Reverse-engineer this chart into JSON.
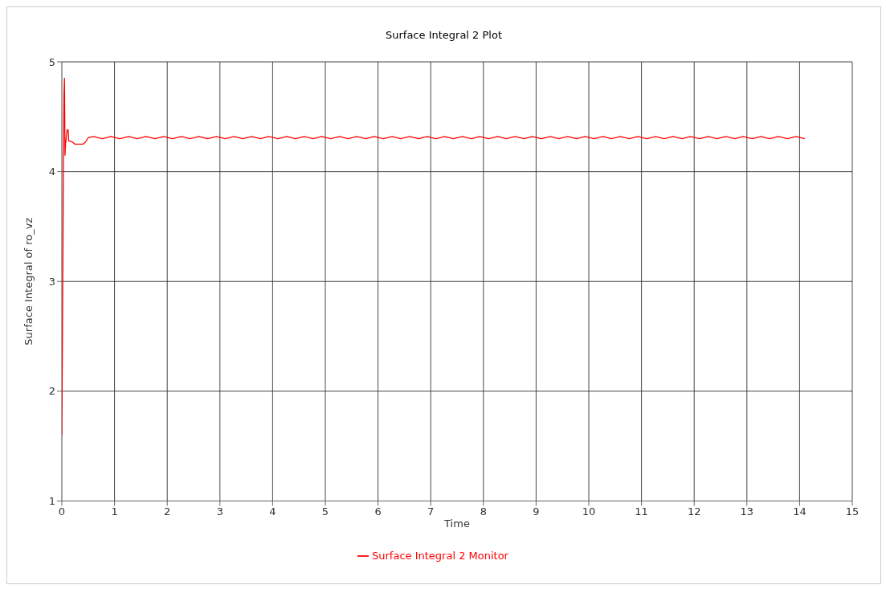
{
  "chart_data": {
    "type": "line",
    "title": "Surface Integral 2 Plot",
    "xlabel": "Time",
    "ylabel": "Surface Integral of ro_vz",
    "x": [
      0,
      0.02,
      0.03,
      0.04,
      0.05,
      0.055,
      0.06,
      0.07,
      0.1,
      0.12,
      0.13,
      0.2,
      0.25,
      0.4,
      0.45,
      0.5,
      0.6,
      0.77,
      0.93,
      1.1,
      1.27,
      1.43,
      1.6,
      1.77,
      1.93,
      2.1,
      2.27,
      2.43,
      2.6,
      2.77,
      2.93,
      3.1,
      3.27,
      3.43,
      3.6,
      3.77,
      3.93,
      4.1,
      4.27,
      4.43,
      4.6,
      4.77,
      4.93,
      5.1,
      5.27,
      5.43,
      5.6,
      5.77,
      5.93,
      6.1,
      6.27,
      6.43,
      6.6,
      6.77,
      6.93,
      7.1,
      7.27,
      7.43,
      7.6,
      7.77,
      7.93,
      8.1,
      8.27,
      8.43,
      8.6,
      8.77,
      8.93,
      9.1,
      9.27,
      9.43,
      9.6,
      9.77,
      9.93,
      10.1,
      10.27,
      10.43,
      10.6,
      10.77,
      10.93,
      11.1,
      11.27,
      11.43,
      11.6,
      11.77,
      11.93,
      12.1,
      12.27,
      12.43,
      12.6,
      12.77,
      12.93,
      13.1,
      13.27,
      13.43,
      13.6,
      13.77,
      13.93,
      14.1
    ],
    "series": [
      {
        "name": "Surface Integral 2 Monitor",
        "color": "#ff0000",
        "values": [
          1.6,
          3.2,
          4.1,
          4.7,
          4.85,
          4.5,
          4.15,
          4.25,
          4.38,
          4.38,
          4.28,
          4.27,
          4.25,
          4.25,
          4.27,
          4.31,
          4.32,
          4.3,
          4.32,
          4.3,
          4.32,
          4.3,
          4.32,
          4.3,
          4.32,
          4.3,
          4.32,
          4.3,
          4.32,
          4.3,
          4.32,
          4.3,
          4.32,
          4.3,
          4.32,
          4.3,
          4.32,
          4.3,
          4.32,
          4.3,
          4.32,
          4.3,
          4.32,
          4.3,
          4.32,
          4.3,
          4.32,
          4.3,
          4.32,
          4.3,
          4.32,
          4.3,
          4.32,
          4.3,
          4.32,
          4.3,
          4.32,
          4.3,
          4.32,
          4.3,
          4.32,
          4.3,
          4.32,
          4.3,
          4.32,
          4.3,
          4.32,
          4.3,
          4.32,
          4.3,
          4.32,
          4.3,
          4.32,
          4.3,
          4.32,
          4.3,
          4.32,
          4.3,
          4.32,
          4.3,
          4.32,
          4.3,
          4.32,
          4.3,
          4.32,
          4.3,
          4.32,
          4.3,
          4.32,
          4.3,
          4.32,
          4.3,
          4.32,
          4.3,
          4.32,
          4.3,
          4.32,
          4.3
        ]
      }
    ],
    "xlim": [
      0,
      15
    ],
    "xticks": [
      0,
      1,
      2,
      3,
      4,
      5,
      6,
      7,
      8,
      9,
      10,
      11,
      12,
      13,
      14,
      15
    ],
    "ylim": [
      1,
      5
    ],
    "yticks": [
      1,
      2,
      3,
      4,
      5
    ],
    "grid": true,
    "legend": "bottom",
    "marker": "none",
    "line_style": "solid"
  }
}
